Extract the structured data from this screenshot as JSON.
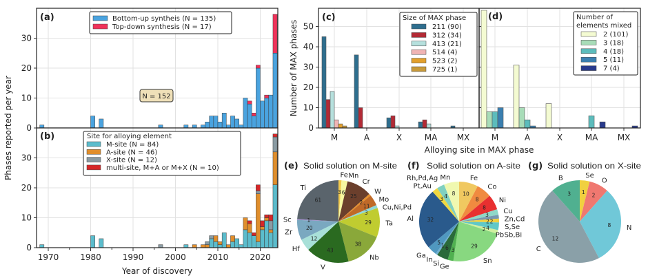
{
  "chart_data": [
    {
      "panel": "(a)",
      "type": "bar",
      "stacked": true,
      "ylabel": "Phases reported per year",
      "xlim": [
        1967,
        2024
      ],
      "ylim": [
        0,
        40
      ],
      "yticks": [
        0,
        10,
        20,
        30
      ],
      "grid": true,
      "legend": "top-center",
      "annotation": "N = 152",
      "years": [
        1968,
        1980,
        1982,
        1996,
        2002,
        2004,
        2006,
        2007,
        2008,
        2009,
        2010,
        2011,
        2012,
        2013,
        2014,
        2015,
        2016,
        2017,
        2018,
        2019,
        2020,
        2021,
        2022,
        2023
      ],
      "series": [
        {
          "name": "Bottom-up syntheis (N = 135)",
          "color": "#4aa3df",
          "values": [
            1,
            4,
            3,
            1,
            1,
            1,
            1,
            2,
            4,
            4,
            2,
            5,
            1,
            4,
            3,
            1,
            10,
            8,
            4,
            20,
            9,
            10,
            11,
            25
          ]
        },
        {
          "name": "Top-down synthesis (N = 17)",
          "color": "#f0325a",
          "values": [
            0,
            0,
            0,
            0,
            0,
            0,
            0,
            0,
            0,
            0,
            0,
            0,
            0,
            0,
            0,
            0,
            0,
            1,
            1,
            1,
            0,
            1,
            0,
            13
          ]
        }
      ]
    },
    {
      "panel": "(b)",
      "type": "bar",
      "stacked": true,
      "xlabel": "Year of discovery",
      "xlim": [
        1967,
        2024
      ],
      "ylim": [
        0,
        40
      ],
      "yticks": [
        0,
        10,
        20,
        30
      ],
      "xticks": [
        1970,
        1980,
        1990,
        2000,
        2010,
        2020
      ],
      "grid": true,
      "legend": "top-center",
      "legend_title": "Site for alloying element",
      "years": [
        1968,
        1980,
        1982,
        1996,
        2002,
        2004,
        2006,
        2007,
        2008,
        2009,
        2010,
        2011,
        2012,
        2013,
        2014,
        2015,
        2016,
        2017,
        2018,
        2019,
        2020,
        2021,
        2022,
        2023
      ],
      "series": [
        {
          "name": "M-site (N = 84)",
          "color": "#5bbccc",
          "values": [
            1,
            4,
            3,
            0,
            1,
            0,
            0,
            0,
            3,
            2,
            1,
            5,
            0,
            2,
            3,
            1,
            6,
            5,
            4,
            2,
            6,
            9,
            5,
            21
          ]
        },
        {
          "name": "A-site (N = 46)",
          "color": "#e08e2c",
          "values": [
            0,
            0,
            0,
            0,
            0,
            1,
            1,
            1,
            0,
            2,
            1,
            0,
            1,
            2,
            0,
            0,
            4,
            3,
            0,
            16,
            1,
            1,
            1,
            11
          ]
        },
        {
          "name": "X-site (N = 12)",
          "color": "#8a9ba3",
          "values": [
            0,
            0,
            0,
            1,
            0,
            0,
            0,
            1,
            1,
            0,
            0,
            0,
            0,
            0,
            0,
            0,
            0,
            0,
            0,
            1,
            0,
            0,
            3,
            5
          ]
        },
        {
          "name": "multi-site,  M+A or M+X (N = 10)",
          "color": "#d62728",
          "values": [
            0,
            0,
            0,
            0,
            0,
            0,
            0,
            0,
            0,
            0,
            0,
            0,
            0,
            0,
            0,
            0,
            0,
            1,
            1,
            2,
            2,
            1,
            2,
            1
          ]
        }
      ]
    },
    {
      "panel": "(c)",
      "type": "bar",
      "ylabel": "Number of MAX phases",
      "xlabel": "Alloying site in MAX phase",
      "categories": [
        "M",
        "A",
        "X",
        "MA",
        "MX"
      ],
      "ylim": [
        0,
        59
      ],
      "yticks": [
        0,
        10,
        20,
        30,
        40,
        50
      ],
      "grid": true,
      "legend": "top-right",
      "legend_title": "Size of MAX phase",
      "series": [
        {
          "name": "211 (90)",
          "color": "#2e6e8e",
          "values": [
            45,
            36,
            5,
            3,
            1
          ]
        },
        {
          "name": "312 (34)",
          "color": "#b22a35",
          "values": [
            14,
            10,
            6,
            4,
            0
          ]
        },
        {
          "name": "413 (21)",
          "color": "#b6e0dd",
          "values": [
            18,
            0,
            1,
            2,
            0
          ]
        },
        {
          "name": "514 (4)",
          "color": "#f0b4b4",
          "values": [
            4,
            0,
            0,
            0,
            0
          ]
        },
        {
          "name": "523 (2)",
          "color": "#e3a02c",
          "values": [
            2,
            0,
            0,
            0,
            0
          ]
        },
        {
          "name": "725 (1)",
          "color": "#c89a3a",
          "values": [
            1,
            0,
            0,
            0,
            0
          ]
        }
      ]
    },
    {
      "panel": "(d)",
      "type": "bar",
      "categories": [
        "M",
        "A",
        "X",
        "MA",
        "MX"
      ],
      "ylim": [
        0,
        59
      ],
      "grid": true,
      "legend": "top-right",
      "legend_title": [
        "Number of",
        "elements mixed"
      ],
      "series": [
        {
          "name": "2 (101)",
          "color": "#f4fbd2",
          "values": [
            58,
            31,
            12,
            0,
            0
          ]
        },
        {
          "name": "3 (18)",
          "color": "#a8dcb8",
          "values": [
            8,
            10,
            0,
            0,
            0
          ]
        },
        {
          "name": "4 (18)",
          "color": "#5cbcbc",
          "values": [
            8,
            4,
            0,
            6,
            0
          ]
        },
        {
          "name": "5 (11)",
          "color": "#3a7fb0",
          "values": [
            10,
            1,
            0,
            0,
            0
          ]
        },
        {
          "name": "7 (4)",
          "color": "#283a8c",
          "values": [
            0,
            0,
            0,
            3,
            1
          ]
        }
      ]
    },
    {
      "panel": "(e)",
      "type": "pie",
      "title": "Solid solution on M-site",
      "labels": [
        "Fe",
        "Mn",
        "Cr",
        "W",
        "Mo",
        "Cu,Ni,Pd",
        "Ta",
        "Nb",
        "V",
        "Hf",
        "Zr",
        "Sc",
        "Ti"
      ],
      "values": [
        3,
        6,
        25,
        2,
        11,
        3,
        29,
        38,
        43,
        12,
        20,
        1,
        61
      ],
      "colors": [
        "#f2c94c",
        "#f7f7a0",
        "#6b3f2c",
        "#e8902c",
        "#c06a28",
        "#8fd8d8",
        "#c0cc30",
        "#8aa83a",
        "#2a6a20",
        "#a8e0d8",
        "#7aa8c0",
        "#9a8cc8",
        "#5a646c"
      ]
    },
    {
      "panel": "(f)",
      "type": "pie",
      "title": "Solid solution on A-site",
      "labels": [
        "Fe",
        "Co",
        "Ni",
        "Cu",
        "Zn,Cd",
        "S,Se",
        "Sb,Bi",
        "Pb",
        "Sn",
        "Ge",
        "Si",
        "In",
        "Ga",
        "Al",
        "Pt,Au",
        "Rh,Pd,Ag",
        "Mn"
      ],
      "values": [
        10,
        8,
        8,
        3,
        2,
        2,
        4,
        2,
        29,
        3,
        6,
        1,
        5,
        32,
        3,
        4,
        8
      ],
      "colors": [
        "#f0c860",
        "#f08a40",
        "#e83030",
        "#90d8c8",
        "#7898b0",
        "#f0d040",
        "#60c8c8",
        "#d0f0a0",
        "#88d880",
        "#50b050",
        "#2a6a3a",
        "#70b0d0",
        "#5098c0",
        "#2a5a8c",
        "#f0d840",
        "#80d0c0",
        "#f0f8b0"
      ]
    },
    {
      "panel": "(g)",
      "type": "pie",
      "title": "Solid solution on X-site",
      "labels": [
        "Se",
        "O",
        "N",
        "C",
        "B"
      ],
      "values": [
        1,
        2,
        8,
        12,
        3
      ],
      "colors": [
        "#f0d040",
        "#f07870",
        "#70c8d8",
        "#8aa0a8",
        "#50b090"
      ]
    }
  ]
}
